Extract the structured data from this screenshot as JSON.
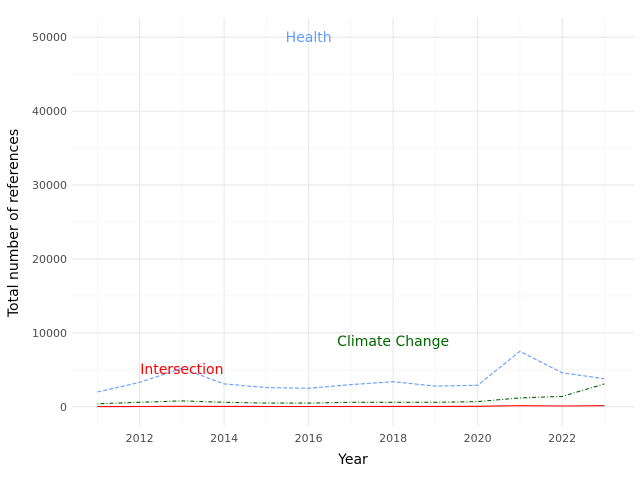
{
  "chart_data": {
    "type": "line",
    "xlabel": "Year",
    "ylabel": "Total number of references",
    "xlim": [
      2010.4,
      2023.7
    ],
    "ylim": [
      -2600,
      52600
    ],
    "x_ticks": [
      2012,
      2014,
      2016,
      2018,
      2020,
      2022
    ],
    "y_ticks": [
      0,
      10000,
      20000,
      30000,
      40000,
      50000
    ],
    "grid": true,
    "legend": "none",
    "x": [
      2011,
      2012,
      2013,
      2014,
      2015,
      2016,
      2017,
      2018,
      2019,
      2020,
      2021,
      2022,
      2023
    ],
    "series": [
      {
        "name": "Health",
        "color": "#619CFF",
        "dash": "dashed",
        "values": [
          2000,
          3300,
          5200,
          3100,
          2600,
          2500,
          3000,
          3400,
          2800,
          2900,
          7500,
          4600,
          3800
        ],
        "label_at": [
          2016,
          50000
        ]
      },
      {
        "name": "Climate Change",
        "color": "#006400",
        "dash": "dotdash",
        "values": [
          400,
          600,
          800,
          600,
          500,
          500,
          600,
          600,
          600,
          700,
          1200,
          1400,
          3100
        ],
        "label_at": [
          2018,
          8900
        ]
      },
      {
        "name": "Intersection",
        "color": "#FF0000",
        "dash": "solid",
        "values": [
          30,
          40,
          60,
          50,
          40,
          40,
          40,
          50,
          50,
          60,
          150,
          100,
          150
        ],
        "label_at": [
          2013,
          5100
        ]
      }
    ]
  }
}
